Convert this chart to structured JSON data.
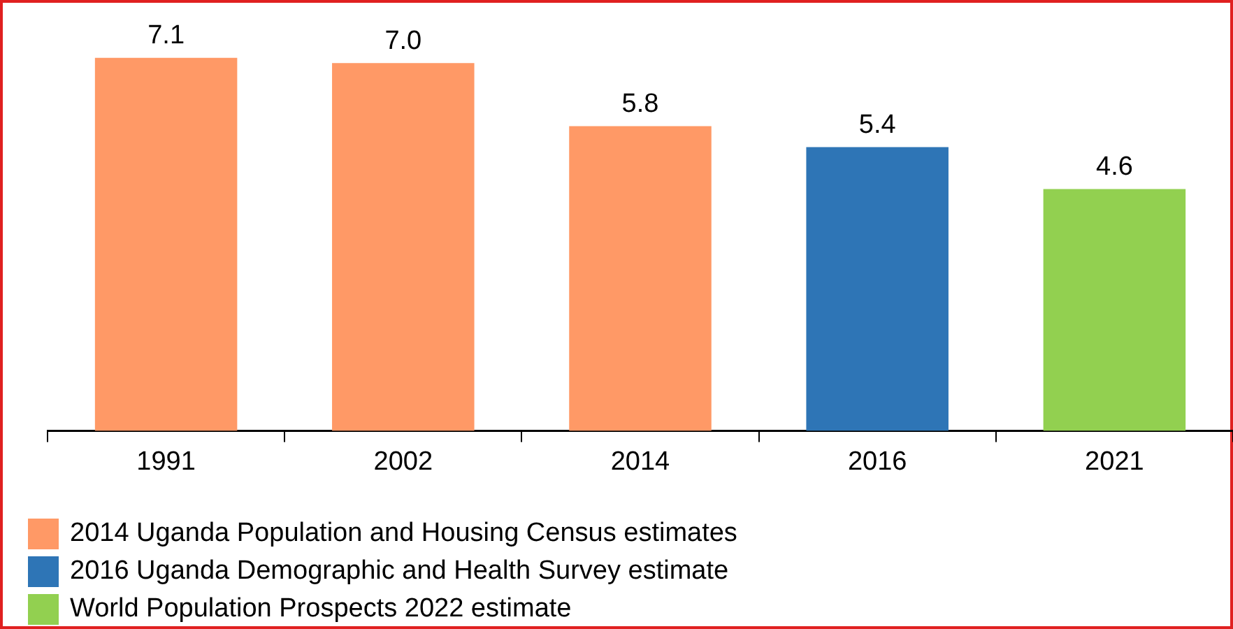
{
  "chart_data": {
    "type": "bar",
    "categories": [
      "1991",
      "2002",
      "2014",
      "2016",
      "2021"
    ],
    "series": [
      {
        "name": "2014 Uganda Population and Housing Census estimates",
        "color": "#ff9966",
        "values": [
          7.1,
          7.0,
          5.8,
          null,
          null
        ],
        "value_labels": [
          "7.1",
          "7.0",
          "5.8",
          null,
          null
        ]
      },
      {
        "name": "2016 Uganda Demographic and Health Survey estimate",
        "color": "#2e75b6",
        "values": [
          null,
          null,
          null,
          5.4,
          null
        ],
        "value_labels": [
          null,
          null,
          null,
          "5.4",
          null
        ]
      },
      {
        "name": "World Population Prospects 2022 estimate",
        "color": "#92d050",
        "values": [
          null,
          null,
          null,
          null,
          4.6
        ],
        "value_labels": [
          null,
          null,
          null,
          null,
          "4.6"
        ]
      }
    ],
    "ylim": [
      0,
      8.2
    ],
    "tick_labels": "x",
    "legend": "bottom left",
    "grid": false
  }
}
